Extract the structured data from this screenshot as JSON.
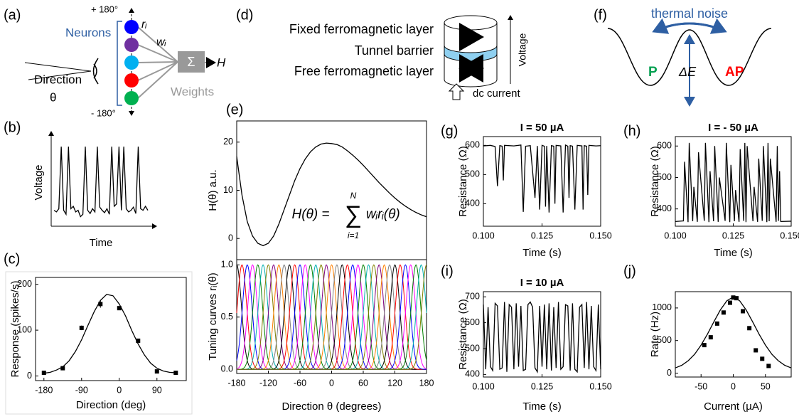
{
  "diagram_a": {
    "label": "(a)",
    "top": "+ 180°",
    "bottom": "- 180°",
    "neurons": "Neurons",
    "r": "rᵢ",
    "w": "wᵢ",
    "sum": "Σ",
    "output": "H",
    "direction": "Direction",
    "theta": "θ",
    "weights": "Weights"
  },
  "diagram_d": {
    "label": "(d)",
    "fixed": "Fixed ferromagnetic layer",
    "barrier": "Tunnel barrier",
    "free": "Free ferromagnetic layer",
    "voltage": "Voltage",
    "current": "dc current"
  },
  "diagram_f": {
    "label": "(f)",
    "noise": "thermal noise",
    "p": "P",
    "barrier": "ΔE",
    "ap": "AP"
  },
  "chart_data": [
    {
      "type": "line",
      "panel": "(b)",
      "y_label": "Voltage",
      "x_label": "Time",
      "color": "#000000",
      "ylim": [
        0,
        1.1
      ],
      "values": [
        0.2,
        0.18,
        0.22,
        1.0,
        0.2,
        0.15,
        1.0,
        0.22,
        0.25,
        0.18,
        0.2,
        0.12,
        0.15,
        1.0,
        0.2,
        0.16,
        0.22,
        0.18,
        1.0,
        0.24,
        0.2,
        0.17,
        0.22,
        0.15,
        1.0,
        0.25,
        0.28,
        1.0,
        0.2,
        1.0,
        0.22,
        0.18,
        0.2,
        0.24,
        0.16,
        1.0,
        0.22,
        0.2,
        0.25,
        0.2
      ]
    },
    {
      "type": "scatter",
      "panel": "(c)",
      "x_label": "Direction (deg)",
      "y_label": "Response (spikes/s)",
      "color": "#000000",
      "x": [
        -180,
        -135,
        -90,
        -45,
        0,
        45,
        90,
        135
      ],
      "values": [
        7,
        17,
        105,
        157,
        148,
        77,
        10,
        7
      ],
      "errors": [
        3,
        3,
        5,
        8,
        4,
        4,
        3,
        3
      ],
      "fit": {
        "x": [
          -180,
          -165,
          -150,
          -135,
          -120,
          -105,
          -90,
          -75,
          -60,
          -45,
          -30,
          -15,
          0,
          15,
          30,
          45,
          60,
          75,
          90,
          105,
          120,
          135
        ],
        "values": [
          6,
          8,
          13,
          20,
          33,
          53,
          79,
          110,
          140,
          165,
          178,
          175,
          157,
          131,
          99,
          70,
          46,
          28,
          17,
          11,
          8,
          7
        ]
      },
      "xlim": [
        -200,
        160
      ],
      "ylim": [
        -10,
        215
      ],
      "xticks": [
        -180,
        -90,
        0,
        90
      ],
      "yticks": [
        0,
        100,
        200
      ]
    },
    {
      "type": "line",
      "panel": "(e)",
      "y_label": "H(θ) a.u.",
      "color": "#000000",
      "annotation": {
        "lhs": "H(θ) =",
        "sum": "∑",
        "upper": "N",
        "lower": "i=1",
        "term": "wᵢrᵢ(θ)"
      },
      "x": [
        -180,
        -170,
        -160,
        -150,
        -140,
        -130,
        -120,
        -110,
        -100,
        -90,
        -80,
        -70,
        -60,
        -50,
        -40,
        -30,
        -20,
        -10,
        0,
        10,
        20,
        30,
        40,
        50,
        60,
        70,
        80,
        90,
        100,
        110,
        120,
        130,
        140,
        150,
        160,
        170,
        180
      ],
      "values": [
        17,
        9,
        3.5,
        0.5,
        -1,
        -1.5,
        -1,
        0.5,
        3,
        6,
        9,
        12,
        14.5,
        16.5,
        18,
        19,
        19.6,
        19.8,
        19.7,
        19.5,
        19,
        18.2,
        17.3,
        16.3,
        15.2,
        14,
        12.8,
        11.6,
        10.5,
        9.4,
        8.4,
        7.5,
        6.7,
        6,
        5.4,
        4.9,
        4.5
      ],
      "xlim": [
        -180,
        180
      ],
      "ylim": [
        -4.4,
        24.4
      ],
      "yticks": [
        0,
        10,
        20
      ]
    },
    {
      "type": "tuning",
      "y_label": "Tuning curves rᵢ(θ)",
      "x_label": "Direction θ (degrees)",
      "centers": [
        -180,
        -170,
        -160,
        -150,
        -140,
        -130,
        -120,
        -110,
        -100,
        -90,
        -80,
        -70,
        -60,
        -50,
        -40,
        -30,
        -20,
        -10,
        0,
        10,
        20,
        30,
        40,
        50,
        60,
        70,
        80,
        90,
        100,
        110,
        120,
        130,
        140,
        150,
        160,
        170,
        180
      ],
      "width": 9,
      "peak": 1,
      "colors": [
        "#000000",
        "#ff0000",
        "#0000ff",
        "#ff00ff",
        "#008000",
        "#00b0b0",
        "#808000",
        "#800080",
        "#ff8000",
        "#808080"
      ],
      "xlim": [
        -180,
        180
      ],
      "ylim": [
        -0.04,
        1.05
      ],
      "xticks": [
        -180,
        -120,
        -60,
        0,
        60,
        120,
        180
      ],
      "yticks": [
        {
          "value": 0,
          "label": "0.0"
        },
        {
          "value": 0.5,
          "label": "0.5"
        },
        {
          "value": 1,
          "label": "1.0"
        }
      ]
    },
    {
      "type": "line",
      "panel": "(g)",
      "title": "I = 50 µA",
      "y_label": "Resistance (Ω)",
      "x_label": "Time (s)",
      "color": "#000000",
      "x": [
        0.1,
        0.103,
        0.105,
        0.106,
        0.107,
        0.108,
        0.1085,
        0.109,
        0.113,
        0.116,
        0.117,
        0.118,
        0.12,
        0.122,
        0.123,
        0.124,
        0.125,
        0.126,
        0.1265,
        0.127,
        0.128,
        0.129,
        0.13,
        0.1305,
        0.131,
        0.133,
        0.134,
        0.135,
        0.136,
        0.1365,
        0.137,
        0.138,
        0.139,
        0.14,
        0.142,
        0.1425,
        0.143,
        0.144,
        0.1445,
        0.145,
        0.148,
        0.15
      ],
      "values": [
        598,
        600,
        596,
        460,
        599,
        597,
        480,
        600,
        598,
        601,
        372,
        597,
        599,
        420,
        598,
        380,
        600,
        597,
        390,
        598,
        370,
        599,
        597,
        400,
        600,
        598,
        370,
        601,
        597,
        420,
        599,
        597,
        380,
        600,
        598,
        380,
        599,
        597,
        430,
        600,
        598,
        599
      ],
      "xlim": [
        0.1,
        0.15
      ],
      "ylim": [
        323,
        630
      ],
      "xticks": [
        {
          "value": 0.1,
          "label": "0.100"
        },
        {
          "value": 0.125,
          "label": "0.125"
        },
        {
          "value": 0.15,
          "label": "0.150"
        }
      ],
      "yticks": [
        400,
        500,
        600
      ]
    },
    {
      "type": "line",
      "panel": "(h)",
      "title": "I = - 50 µA",
      "y_label": "Resistance (Ω)",
      "x_label": "Time (s)",
      "color": "#000000",
      "x": [
        0.1,
        0.1035,
        0.104,
        0.1055,
        0.106,
        0.1075,
        0.108,
        0.1095,
        0.11,
        0.1125,
        0.113,
        0.1145,
        0.115,
        0.1165,
        0.117,
        0.1185,
        0.119,
        0.1215,
        0.122,
        0.1235,
        0.124,
        0.1255,
        0.126,
        0.1275,
        0.128,
        0.1295,
        0.13,
        0.1305,
        0.131,
        0.1335,
        0.134,
        0.1355,
        0.136,
        0.1375,
        0.138,
        0.1395,
        0.14,
        0.1405,
        0.141,
        0.1435,
        0.144,
        0.1445,
        0.145,
        0.1455,
        0.15
      ],
      "values": [
        360,
        362,
        550,
        358,
        610,
        361,
        470,
        359,
        580,
        362,
        610,
        358,
        520,
        361,
        600,
        359,
        500,
        362,
        610,
        358,
        540,
        361,
        460,
        359,
        590,
        362,
        610,
        358,
        600,
        361,
        470,
        359,
        560,
        362,
        600,
        358,
        610,
        361,
        560,
        359,
        600,
        362,
        520,
        360,
        361
      ],
      "xlim": [
        0.1,
        0.15
      ],
      "ylim": [
        345,
        630
      ],
      "xticks": [
        {
          "value": 0.1,
          "label": "0.100"
        },
        {
          "value": 0.125,
          "label": "0.125"
        },
        {
          "value": 0.15,
          "label": "0.150"
        }
      ],
      "yticks": [
        400,
        500,
        600
      ]
    },
    {
      "type": "line",
      "panel": "(i)",
      "title": "I = 10 µA",
      "y_label": "Resistance (Ω)",
      "x_label": "Time (s)",
      "color": "#000000",
      "x": [
        0.1,
        0.101,
        0.102,
        0.103,
        0.104,
        0.105,
        0.106,
        0.107,
        0.108,
        0.109,
        0.11,
        0.111,
        0.112,
        0.113,
        0.114,
        0.115,
        0.116,
        0.117,
        0.118,
        0.119,
        0.12,
        0.121,
        0.122,
        0.123,
        0.124,
        0.125,
        0.126,
        0.127,
        0.128,
        0.129,
        0.13,
        0.131,
        0.132,
        0.133,
        0.134,
        0.135,
        0.136,
        0.137,
        0.138,
        0.139,
        0.14,
        0.141,
        0.142,
        0.143,
        0.144,
        0.145,
        0.146,
        0.147,
        0.148,
        0.149,
        0.15
      ],
      "values": [
        670,
        420,
        660,
        430,
        415,
        675,
        665,
        420,
        425,
        680,
        410,
        670,
        660,
        420,
        675,
        430,
        665,
        415,
        420,
        670,
        680,
        660,
        425,
        410,
        665,
        430,
        670,
        420,
        675,
        415,
        660,
        425,
        680,
        420,
        430,
        670,
        665,
        415,
        675,
        420,
        410,
        660,
        670,
        425,
        680,
        420,
        665,
        430,
        415,
        670,
        420
      ],
      "xlim": [
        0.1,
        0.15
      ],
      "ylim": [
        390,
        720
      ],
      "xticks": [
        {
          "value": 0.1,
          "label": "0.100"
        },
        {
          "value": 0.125,
          "label": "0.125"
        },
        {
          "value": 0.15,
          "label": "0.150"
        }
      ],
      "yticks": [
        400,
        500,
        600,
        700
      ]
    },
    {
      "type": "scatter",
      "panel": "(j)",
      "x_label": "Current (µA)",
      "y_label": "Rate (Hz)",
      "color": "#000000",
      "x": [
        -45,
        -35,
        -25,
        -15,
        -5,
        0,
        5,
        15,
        25,
        35,
        45,
        55
      ],
      "values": [
        430,
        550,
        760,
        930,
        1080,
        1160,
        1150,
        950,
        690,
        350,
        220,
        110
      ],
      "fit": {
        "x": [
          -90,
          -80,
          -70,
          -60,
          -50,
          -40,
          -30,
          -20,
          -10,
          0,
          10,
          20,
          30,
          40,
          50,
          60,
          70,
          80,
          90
        ],
        "values": [
          80,
          120,
          190,
          290,
          430,
          600,
          790,
          970,
          1110,
          1170,
          1110,
          970,
          790,
          600,
          430,
          290,
          190,
          120,
          80
        ]
      },
      "xlim": [
        -90,
        90
      ],
      "ylim": [
        -60,
        1250
      ],
      "xticks": [
        -50,
        0,
        50
      ],
      "yticks": [
        0,
        500,
        1000
      ]
    }
  ]
}
